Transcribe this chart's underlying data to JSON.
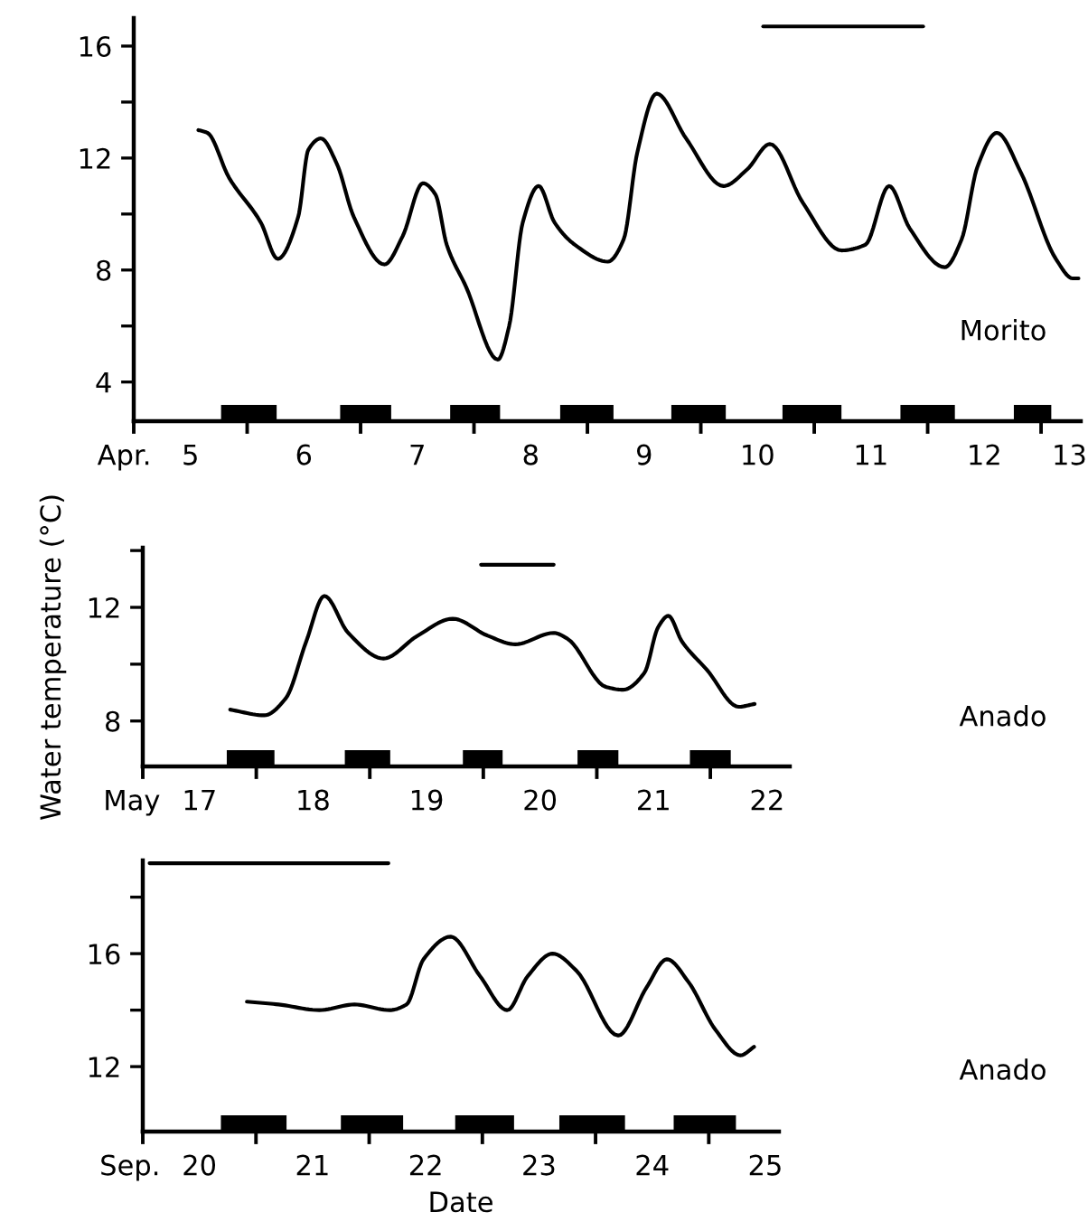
{
  "chart_data": [
    {
      "type": "line",
      "xlim": [
        5,
        13.35
      ],
      "ylim": [
        2.6,
        17
      ],
      "xticks": [
        {
          "value": 5,
          "label": null
        },
        {
          "value": 6,
          "label": null
        },
        {
          "value": 7,
          "label": null
        },
        {
          "value": 8,
          "label": null
        },
        {
          "value": 9,
          "label": null
        },
        {
          "value": 10,
          "label": null
        },
        {
          "value": 11,
          "label": null
        },
        {
          "value": 12,
          "label": null
        },
        {
          "value": 13,
          "label": null
        },
        {
          "value": 5.5,
          "label": "5"
        },
        {
          "value": 6.5,
          "label": "6"
        },
        {
          "value": 7.5,
          "label": "7"
        },
        {
          "value": 8.5,
          "label": "8"
        },
        {
          "value": 9.5,
          "label": "9"
        },
        {
          "value": 10.5,
          "label": "10"
        },
        {
          "value": 11.5,
          "label": "11"
        },
        {
          "value": 12.5,
          "label": "12"
        },
        {
          "value": 13.25,
          "label": "13"
        }
      ],
      "yticks": [
        4,
        {
          "value": 6,
          "label": null
        },
        8,
        {
          "value": 10,
          "label": null
        },
        12,
        {
          "value": 14,
          "label": null
        },
        16
      ],
      "annotations": [
        "Apr.",
        "Morito"
      ],
      "bands": [
        {
          "axis": "x",
          "from": 5.77,
          "to": 6.26,
          "color": "#000000"
        },
        {
          "axis": "x",
          "from": 6.82,
          "to": 7.27,
          "color": "#000000"
        },
        {
          "axis": "x",
          "from": 7.79,
          "to": 8.23,
          "color": "#000000"
        },
        {
          "axis": "x",
          "from": 8.76,
          "to": 9.23,
          "color": "#000000"
        },
        {
          "axis": "x",
          "from": 9.74,
          "to": 10.22,
          "color": "#000000"
        },
        {
          "axis": "x",
          "from": 10.72,
          "to": 11.24,
          "color": "#000000"
        },
        {
          "axis": "x",
          "from": 11.76,
          "to": 12.24,
          "color": "#000000"
        },
        {
          "axis": "x",
          "from": 12.76,
          "to": 13.09,
          "color": "#000000"
        }
      ],
      "series": [
        {
          "color": "#000000",
          "x": [
            5.57,
            5.65,
            5.84,
            6.12,
            6.27,
            6.45,
            6.54,
            6.65,
            6.79,
            6.94,
            7.21,
            7.37,
            7.55,
            7.66,
            7.76,
            7.93,
            8.21,
            8.31,
            8.43,
            8.57,
            8.71,
            8.89,
            9.18,
            9.32,
            9.44,
            9.61,
            9.87,
            10.2,
            10.41,
            10.61,
            10.9,
            11.24,
            11.45,
            11.66,
            11.84,
            12.15,
            12.3,
            12.44,
            12.61,
            12.82,
            13.13,
            13.28,
            13.33
          ],
          "values": [
            13.0,
            12.9,
            11.3,
            9.7,
            8.4,
            9.9,
            12.3,
            12.7,
            11.8,
            9.9,
            8.2,
            9.2,
            11.1,
            10.7,
            8.9,
            7.4,
            4.8,
            6.0,
            9.7,
            11.0,
            9.7,
            8.9,
            8.3,
            9.1,
            12.2,
            14.3,
            12.7,
            11.0,
            11.6,
            12.5,
            10.4,
            8.7,
            8.9,
            11.0,
            9.5,
            8.1,
            9.1,
            11.7,
            12.9,
            11.5,
            8.4,
            7.7,
            7.7
          ]
        },
        {
          "color": "#000000",
          "x": [
            10.55,
            11.96
          ],
          "values": [
            16.7,
            16.7
          ]
        }
      ]
    },
    {
      "type": "line",
      "xlim": [
        17,
        22.7
      ],
      "ylim": [
        6.4,
        14.1
      ],
      "ylabel": "Water temperature (°C)",
      "xticks": [
        {
          "value": 17,
          "label": null
        },
        {
          "value": 18,
          "label": null
        },
        {
          "value": 19,
          "label": null
        },
        {
          "value": 20,
          "label": null
        },
        {
          "value": 21,
          "label": null
        },
        {
          "value": 22,
          "label": null
        },
        {
          "value": 17.5,
          "label": "17"
        },
        {
          "value": 18.5,
          "label": "18"
        },
        {
          "value": 19.5,
          "label": "19"
        },
        {
          "value": 20.5,
          "label": "20"
        },
        {
          "value": 21.5,
          "label": "21"
        },
        {
          "value": 22.5,
          "label": "22"
        }
      ],
      "yticks": [
        8,
        {
          "value": 10,
          "label": null
        },
        12,
        {
          "value": 14,
          "label": null
        }
      ],
      "annotations": [
        "May",
        "Anado"
      ],
      "bands": [
        {
          "axis": "x",
          "from": 17.74,
          "to": 18.16,
          "color": "#000000"
        },
        {
          "axis": "x",
          "from": 18.78,
          "to": 19.18,
          "color": "#000000"
        },
        {
          "axis": "x",
          "from": 19.82,
          "to": 20.17,
          "color": "#000000"
        },
        {
          "axis": "x",
          "from": 20.83,
          "to": 21.19,
          "color": "#000000"
        },
        {
          "axis": "x",
          "from": 21.82,
          "to": 22.18,
          "color": "#000000"
        }
      ],
      "series": [
        {
          "color": "#000000",
          "x": [
            17.77,
            18.07,
            18.26,
            18.44,
            18.6,
            18.81,
            19.12,
            19.42,
            19.73,
            20.04,
            20.28,
            20.62,
            20.74,
            21.08,
            21.23,
            21.42,
            21.54,
            21.63,
            21.75,
            21.97,
            22.25,
            22.39
          ],
          "values": [
            8.4,
            8.2,
            8.8,
            10.8,
            12.4,
            11.1,
            10.2,
            11.0,
            11.6,
            11.0,
            10.7,
            11.1,
            10.9,
            9.2,
            9.1,
            9.7,
            11.3,
            11.7,
            10.8,
            9.8,
            8.5,
            8.6
          ]
        },
        {
          "color": "#000000",
          "x": [
            19.98,
            20.62
          ],
          "values": [
            13.5,
            13.5
          ]
        }
      ]
    },
    {
      "type": "line",
      "xlim": [
        20,
        25.62
      ],
      "ylim": [
        9.7,
        19.3
      ],
      "xlabel": "Date",
      "xticks": [
        {
          "value": 20,
          "label": null
        },
        {
          "value": 21,
          "label": null
        },
        {
          "value": 22,
          "label": null
        },
        {
          "value": 23,
          "label": null
        },
        {
          "value": 24,
          "label": null
        },
        {
          "value": 25,
          "label": null
        },
        {
          "value": 20.5,
          "label": "20"
        },
        {
          "value": 21.5,
          "label": "21"
        },
        {
          "value": 22.5,
          "label": "22"
        },
        {
          "value": 23.5,
          "label": "23"
        },
        {
          "value": 24.5,
          "label": "24"
        },
        {
          "value": 25.5,
          "label": "25"
        }
      ],
      "yticks": [
        12,
        {
          "value": 14,
          "label": null
        },
        16,
        {
          "value": 18,
          "label": null
        }
      ],
      "annotations": [
        "Sep.",
        "Anado"
      ],
      "bands": [
        {
          "axis": "x",
          "from": 20.69,
          "to": 21.27,
          "color": "#000000"
        },
        {
          "axis": "x",
          "from": 21.75,
          "to": 22.3,
          "color": "#000000"
        },
        {
          "axis": "x",
          "from": 22.76,
          "to": 23.28,
          "color": "#000000"
        },
        {
          "axis": "x",
          "from": 23.68,
          "to": 24.26,
          "color": "#000000"
        },
        {
          "axis": "x",
          "from": 24.69,
          "to": 25.24,
          "color": "#000000"
        }
      ],
      "series": [
        {
          "color": "#000000",
          "x": [
            20.92,
            21.2,
            21.56,
            21.87,
            22.18,
            22.33,
            22.48,
            22.72,
            22.98,
            23.22,
            23.4,
            23.62,
            23.83,
            24.2,
            24.45,
            24.63,
            24.82,
            25.06,
            25.28,
            25.4
          ],
          "values": [
            14.3,
            14.2,
            14.0,
            14.2,
            14.0,
            14.2,
            15.8,
            16.6,
            15.2,
            14.0,
            15.2,
            16.0,
            15.4,
            13.1,
            14.8,
            15.8,
            15.0,
            13.3,
            12.4,
            12.7
          ]
        },
        {
          "color": "#000000",
          "x": [
            20.06,
            22.17
          ],
          "values": [
            19.2,
            19.2
          ]
        }
      ]
    }
  ]
}
